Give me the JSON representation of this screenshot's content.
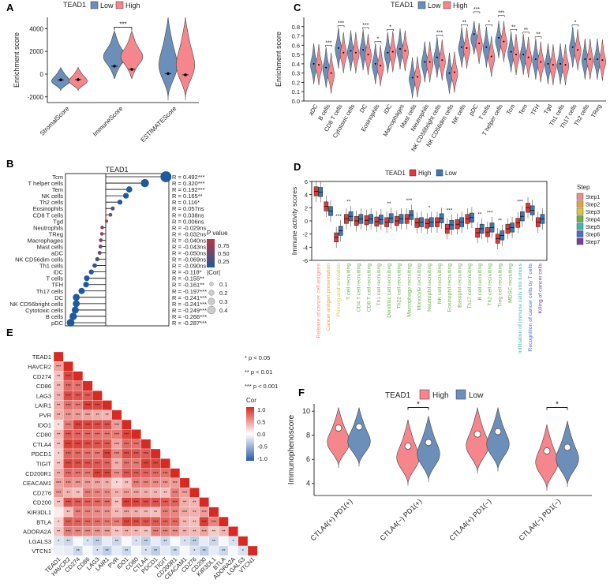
{
  "colors": {
    "low": "#6b8fb8",
    "high": "#f4868c",
    "blue": "#3a78b5",
    "red": "#e03a33",
    "pvHigh": "#c0333f",
    "pvLow": "#1f5a9c",
    "teal": "#4a6fa0"
  },
  "chart_data": [
    {
      "panel": "A",
      "type": "violin",
      "legend_title": "TEAD1",
      "legend_low": "Low",
      "legend_high": "High",
      "ylabel": "Enrichment score",
      "ylim": [
        -2500,
        5000
      ],
      "yticks": [
        "-2000",
        "0",
        "2000",
        "4000"
      ],
      "categories": [
        "StromalScore",
        "ImmuneScore",
        "ESTIMATEScore"
      ],
      "series": [
        {
          "name": "Low",
          "medians": [
            -500,
            700,
            50
          ]
        },
        {
          "name": "High",
          "medians": [
            -480,
            420,
            -60
          ]
        }
      ],
      "annotations": [
        {
          "category": "ImmuneScore",
          "text": "***"
        }
      ]
    },
    {
      "panel": "C",
      "type": "violin",
      "legend_title": "TEAD1",
      "legend_low": "Low",
      "legend_high": "High",
      "ylabel": "Enrichment score",
      "ylim": [
        0,
        0.9
      ],
      "yticks": [
        "0.0",
        "0.1",
        "0.2",
        "0.3",
        "0.4",
        "0.5",
        "0.6",
        "0.7",
        "0.8"
      ],
      "categories": [
        "aDC",
        "B cells",
        "CD8 T cells",
        "Cytotoxic cells",
        "DC",
        "Eosinophils",
        "iDC",
        "Macrophages",
        "Mast cells",
        "Neutrophils",
        "NK CD56bright cells",
        "NK CD56dim cells",
        "NK cells",
        "pDC",
        "T cells",
        "T helper cells",
        "Tcm",
        "Tem",
        "TFH",
        "Tgd",
        "Th1 cells",
        "Th17 cells",
        "Th2 cells",
        "TReg"
      ],
      "series": [
        {
          "name": "Low",
          "medians": [
            0.4,
            0.36,
            0.57,
            0.54,
            0.55,
            0.4,
            0.52,
            0.56,
            0.25,
            0.42,
            0.47,
            0.3,
            0.58,
            0.72,
            0.58,
            0.68,
            0.53,
            0.5,
            0.45,
            0.4,
            0.4,
            0.58,
            0.45,
            0.45
          ]
        },
        {
          "name": "High",
          "medians": [
            0.39,
            0.3,
            0.52,
            0.52,
            0.5,
            0.38,
            0.53,
            0.54,
            0.26,
            0.42,
            0.44,
            0.31,
            0.57,
            0.62,
            0.48,
            0.64,
            0.5,
            0.47,
            0.42,
            0.39,
            0.39,
            0.55,
            0.45,
            0.44
          ]
        }
      ],
      "annotations": [
        "",
        "***",
        "***",
        "",
        "***",
        "*",
        "*",
        "",
        "",
        "",
        "***",
        "",
        "**",
        "***",
        "*",
        "***",
        "**",
        "**",
        "**",
        "",
        "",
        "*",
        "",
        ""
      ]
    },
    {
      "panel": "B",
      "type": "lollipop",
      "title": "TEAD1",
      "color_legend_title": "P value",
      "color_legend_ticks": [
        "0.75",
        "0.50",
        "0.25"
      ],
      "size_legend_title": "|Cor|",
      "size_legend_ticks": [
        "0.1",
        "0.2",
        "0.3",
        "0.4"
      ],
      "categories": [
        "Tcm",
        "T helper cells",
        "Tem",
        "NK cells",
        "Th2 cells",
        "Eosinophils",
        "CD8 T cells",
        "Tgd",
        "Neutrophils",
        "TReg",
        "Macrophages",
        "Mast cells",
        "aDC",
        "NK CD56dim cells",
        "Th1 cells",
        "iDC",
        "T cells",
        "TFH",
        "Th17 cells",
        "DC",
        "NK CD56bright cells",
        "Cytotoxic cells",
        "B cells",
        "pDC"
      ],
      "values": [
        0.492,
        0.32,
        0.192,
        0.165,
        0.116,
        0.057,
        0.038,
        0.006,
        -0.029,
        -0.032,
        -0.04,
        -0.043,
        -0.05,
        -0.069,
        -0.09,
        -0.118,
        -0.155,
        -0.161,
        -0.197,
        -0.241,
        -0.241,
        -0.249,
        -0.266,
        -0.287
      ],
      "labels": [
        "R = 0.492***",
        "R = 0.320***",
        "R = 0.192***",
        "R = 0.165**",
        "R = 0.116*",
        "R = 0.057ns",
        "R = 0.038ns",
        "R = 0.006ns",
        "R = -0.029ns",
        "R = -0.032ns",
        "R = -0.040ns",
        "R = -0.043ns",
        "R = -0.050ns",
        "R = -0.069ns",
        "R = -0.090ns",
        "R = -0.118*",
        "R = -0.155**",
        "R = -0.161**",
        "R = -0.197***",
        "R = -0.241***",
        "R = -0.241***",
        "R = -0.249***",
        "R = -0.266***",
        "R = -0.287***"
      ],
      "pvalues": [
        0.0,
        0.0,
        0.0,
        0.005,
        0.03,
        0.3,
        0.5,
        0.9,
        0.6,
        0.58,
        0.5,
        0.46,
        0.4,
        0.25,
        0.1,
        0.03,
        0.005,
        0.005,
        0.0,
        0.0,
        0.0,
        0.0,
        0.0,
        0.0
      ]
    },
    {
      "panel": "D",
      "type": "boxplot",
      "legend_title": "TEAD1",
      "legend_high": "High",
      "legend_low": "Low",
      "ylabel": "Immune activity scores",
      "ylim": [
        -6,
        6
      ],
      "yticks": [
        "6",
        "4",
        "2",
        "0",
        "-2",
        "-4",
        "-6"
      ],
      "step_legend_title": "Step",
      "steps": [
        "Step1",
        "Step2",
        "Step3",
        "Step4",
        "Step5",
        "Step6",
        "Step7"
      ],
      "step_colors": [
        "#f08c8c",
        "#e8a33d",
        "#d6c93a",
        "#6ab04c",
        "#43b7b0",
        "#4a6ecb",
        "#7b3fa0"
      ],
      "categories": [
        "Release of cancer cell antigens",
        "Cancer antigen presentation",
        "Priming and activation",
        "T cell recruiting",
        "CD4 T cell recruiting",
        "CD8 T cell recruiting",
        "Th1 cell recruiting",
        "Dendritic cell recruiting",
        "Th22 cell recruiting",
        "Macrophage recruiting",
        "Monocyte recruiting",
        "Neutrophil recruiting",
        "NK cell recruiting",
        "Eosinophil recruiting",
        "Basophil recruiting",
        "Th17 cell recruiting",
        "B cell recruiting",
        "Th2 cell recruiting",
        "Treg cell recruiting",
        "MDSC recruiting",
        "Infiltration of immune cells into tumors",
        "Recognition of cancer cells by T cells",
        "Killing of cancer cells"
      ],
      "category_steps": [
        1,
        2,
        3,
        4,
        4,
        4,
        4,
        4,
        4,
        4,
        4,
        4,
        4,
        4,
        4,
        4,
        4,
        4,
        4,
        4,
        5,
        6,
        7
      ],
      "series": [
        {
          "name": "High",
          "medians": [
            4.5,
            2.2,
            -2.5,
            0.3,
            0.0,
            0.1,
            -0.1,
            -0.2,
            0.0,
            0.3,
            -0.3,
            -0.4,
            -0.2,
            -1.2,
            -0.5,
            0.3,
            -1.8,
            -1.7,
            -2.7,
            -1.2,
            -0.3,
            2.0,
            -0.2
          ]
        },
        {
          "name": "Low",
          "medians": [
            4.4,
            1.5,
            -1.5,
            0.7,
            0.3,
            0.3,
            0.2,
            0.4,
            0.3,
            0.9,
            -0.2,
            -0.2,
            0.4,
            -0.6,
            -0.2,
            0.5,
            -1.2,
            -1.0,
            -2.2,
            -1.0,
            0.7,
            1.6,
            0.3
          ]
        }
      ],
      "annotations": [
        "",
        "",
        "***",
        "**",
        "",
        "",
        "",
        "**",
        "",
        "***",
        "",
        "*",
        "",
        "***",
        "",
        "",
        "**",
        "***",
        "**",
        "",
        "***",
        "",
        ""
      ]
    },
    {
      "panel": "E",
      "type": "heatmap",
      "legend_title": "Cor",
      "legend_ticks": [
        "1.0",
        "0.5",
        "0.0",
        "-0.5",
        "-1.0"
      ],
      "sig_legend": [
        "* p < 0.05",
        "** p < 0.01",
        "*** p < 0.001"
      ],
      "genes": [
        "TEAD1",
        "HAVCR2",
        "CD274",
        "CD86",
        "LAG3",
        "LAIR1",
        "PVR",
        "IDO1",
        "CD80",
        "CTLA4",
        "PDCD1",
        "TIGIT",
        "CD200R1",
        "CEACAM1",
        "CD276",
        "CD200",
        "KIR3DL1",
        "BTLA",
        "ADORA2A",
        "LGALS3",
        "VTCN1"
      ]
    },
    {
      "panel": "F",
      "type": "violin",
      "legend_title": "TEAD1",
      "legend_high": "High",
      "legend_low": "Low",
      "ylabel": "Immunophenoscore",
      "ylim": [
        3,
        10.6
      ],
      "yticks": [
        "4",
        "6",
        "8",
        "10"
      ],
      "categories": [
        "CTLA4(+) PD1(+)",
        "CTLA4(−) PD1(+)",
        "CTLA4(+) PD1(−)",
        "CTLA4(−) PD1(−)"
      ],
      "series": [
        {
          "name": "High",
          "medians": [
            8.6,
            7.1,
            8.1,
            6.7
          ]
        },
        {
          "name": "Low",
          "medians": [
            8.7,
            7.4,
            8.3,
            7.0
          ]
        }
      ],
      "annotations": [
        "",
        "*",
        "",
        "*"
      ]
    }
  ],
  "panel_labels": [
    "A",
    "B",
    "C",
    "D",
    "E",
    "F"
  ]
}
